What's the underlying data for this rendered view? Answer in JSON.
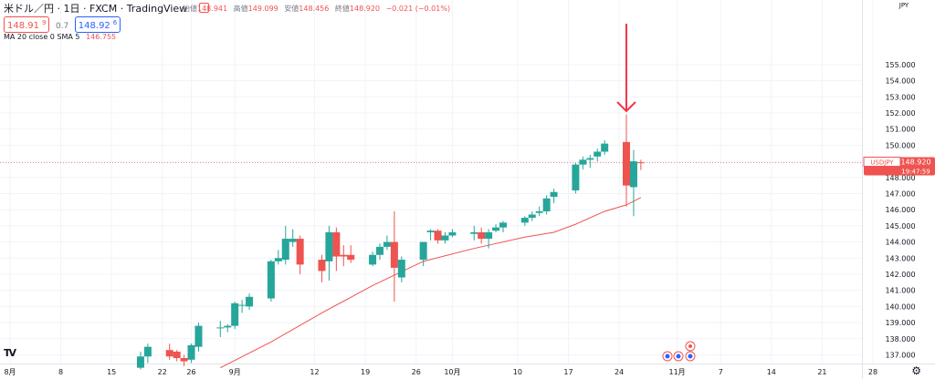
{
  "header": {
    "symbol_line": "米ドル／円 · 1日 · FXCM · TradingView",
    "sell_price": "148.91",
    "sell_price_sup": "9",
    "spread": "0.7",
    "buy_price": "148.92",
    "buy_price_sup": "6",
    "ohlc": {
      "open_label": "始値",
      "open": "148.941",
      "high_label": "高値",
      "high": "149.099",
      "low_label": "安値",
      "low": "148.456",
      "close_label": "終値",
      "close": "148.920",
      "change": "−0.021 (−0.01%)"
    },
    "indicator": {
      "label": "MA 20 close 0 SMA 5",
      "value": "146.755"
    }
  },
  "price_label": {
    "symbol": "USDJPY",
    "price": "148.920",
    "countdown": "19:47:59"
  },
  "colors": {
    "up": "#26a69a",
    "down": "#ef5350",
    "ma": "#ef5350",
    "grid": "#f0f3fa",
    "axis_text": "#131722"
  },
  "chart_data": {
    "type": "candlestick",
    "title": "米ドル／円 · 1日 · FXCM",
    "currency": "JPY",
    "x_ticks": [
      {
        "day": 0,
        "label": "8月"
      },
      {
        "day": 7,
        "label": "8"
      },
      {
        "day": 14,
        "label": "15"
      },
      {
        "day": 21,
        "label": "22"
      },
      {
        "day": 25,
        "label": "26"
      },
      {
        "day": 31,
        "label": "9月"
      },
      {
        "day": 42,
        "label": "12"
      },
      {
        "day": 49,
        "label": "19"
      },
      {
        "day": 56,
        "label": "26"
      },
      {
        "day": 61,
        "label": "10月"
      },
      {
        "day": 70,
        "label": "10"
      },
      {
        "day": 77,
        "label": "17"
      },
      {
        "day": 84,
        "label": "24"
      },
      {
        "day": 92,
        "label": "11月"
      },
      {
        "day": 98,
        "label": "7"
      },
      {
        "day": 105,
        "label": "14"
      },
      {
        "day": 112,
        "label": "21"
      },
      {
        "day": 119,
        "label": "28"
      }
    ],
    "y_ticks": [
      137,
      138,
      139,
      140,
      141,
      142,
      143,
      144,
      145,
      146,
      147,
      148,
      149,
      150,
      151,
      152,
      153,
      154,
      155
    ],
    "ylim": [
      136.3,
      155.2
    ],
    "xlim": [
      0,
      121
    ],
    "candles": [
      {
        "day": 18,
        "o": 136.2,
        "h": 137.2,
        "l": 136.1,
        "c": 136.9
      },
      {
        "day": 19,
        "o": 136.9,
        "h": 137.7,
        "l": 136.5,
        "c": 137.5
      },
      {
        "day": 22,
        "o": 137.3,
        "h": 137.7,
        "l": 136.7,
        "c": 136.9
      },
      {
        "day": 23,
        "o": 137.2,
        "h": 137.3,
        "l": 136.6,
        "c": 136.8
      },
      {
        "day": 24,
        "o": 136.8,
        "h": 137.0,
        "l": 136.3,
        "c": 136.6
      },
      {
        "day": 25,
        "o": 136.7,
        "h": 137.7,
        "l": 136.5,
        "c": 137.6
      },
      {
        "day": 26,
        "o": 137.5,
        "h": 139.0,
        "l": 137.2,
        "c": 138.8
      },
      {
        "day": 29,
        "o": 138.7,
        "h": 139.1,
        "l": 138.1,
        "c": 138.7
      },
      {
        "day": 30,
        "o": 138.7,
        "h": 138.9,
        "l": 138.4,
        "c": 138.8
      },
      {
        "day": 31,
        "o": 138.8,
        "h": 140.3,
        "l": 138.6,
        "c": 140.2
      },
      {
        "day": 32,
        "o": 140.1,
        "h": 140.4,
        "l": 139.6,
        "c": 140.1
      },
      {
        "day": 33,
        "o": 140.0,
        "h": 140.8,
        "l": 139.8,
        "c": 140.6
      },
      {
        "day": 36,
        "o": 140.5,
        "h": 142.9,
        "l": 140.3,
        "c": 142.8
      },
      {
        "day": 37,
        "o": 142.8,
        "h": 143.5,
        "l": 142.6,
        "c": 143.0
      },
      {
        "day": 38,
        "o": 142.9,
        "h": 145.0,
        "l": 142.6,
        "c": 144.2
      },
      {
        "day": 39,
        "o": 144.0,
        "h": 144.8,
        "l": 143.7,
        "c": 144.2
      },
      {
        "day": 40,
        "o": 144.2,
        "h": 144.4,
        "l": 142.0,
        "c": 142.6
      },
      {
        "day": 43,
        "o": 142.9,
        "h": 143.2,
        "l": 141.5,
        "c": 142.2
      },
      {
        "day": 44,
        "o": 142.8,
        "h": 145.0,
        "l": 141.6,
        "c": 144.6
      },
      {
        "day": 45,
        "o": 144.6,
        "h": 144.9,
        "l": 142.2,
        "c": 143.1
      },
      {
        "day": 46,
        "o": 143.2,
        "h": 143.8,
        "l": 142.5,
        "c": 143.1
      },
      {
        "day": 47,
        "o": 143.2,
        "h": 143.8,
        "l": 142.7,
        "c": 142.9
      },
      {
        "day": 50,
        "o": 142.6,
        "h": 143.4,
        "l": 142.5,
        "c": 143.2
      },
      {
        "day": 51,
        "o": 143.2,
        "h": 143.9,
        "l": 142.9,
        "c": 143.7
      },
      {
        "day": 52,
        "o": 143.7,
        "h": 144.4,
        "l": 143.5,
        "c": 144.0
      },
      {
        "day": 53,
        "o": 144.0,
        "h": 145.9,
        "l": 140.3,
        "c": 142.4
      },
      {
        "day": 54,
        "o": 141.8,
        "h": 143.1,
        "l": 141.5,
        "c": 142.9
      },
      {
        "day": 57,
        "o": 142.9,
        "h": 144.0,
        "l": 142.5,
        "c": 144.0
      },
      {
        "day": 58,
        "o": 144.6,
        "h": 144.8,
        "l": 144.1,
        "c": 144.7
      },
      {
        "day": 59,
        "o": 144.7,
        "h": 144.8,
        "l": 143.9,
        "c": 144.1
      },
      {
        "day": 60,
        "o": 144.1,
        "h": 144.6,
        "l": 143.9,
        "c": 144.4
      },
      {
        "day": 61,
        "o": 144.4,
        "h": 144.8,
        "l": 144.3,
        "c": 144.6
      },
      {
        "day": 64,
        "o": 144.5,
        "h": 145.0,
        "l": 144.1,
        "c": 144.6
      },
      {
        "day": 65,
        "o": 144.6,
        "h": 144.9,
        "l": 143.9,
        "c": 144.2
      },
      {
        "day": 66,
        "o": 144.2,
        "h": 144.8,
        "l": 143.6,
        "c": 144.6
      },
      {
        "day": 67,
        "o": 144.7,
        "h": 145.1,
        "l": 144.6,
        "c": 144.9
      },
      {
        "day": 68,
        "o": 144.9,
        "h": 145.3,
        "l": 144.6,
        "c": 145.2
      },
      {
        "day": 71,
        "o": 145.2,
        "h": 145.6,
        "l": 145.0,
        "c": 145.5
      },
      {
        "day": 72,
        "o": 145.5,
        "h": 145.9,
        "l": 145.3,
        "c": 145.7
      },
      {
        "day": 73,
        "o": 145.8,
        "h": 146.2,
        "l": 145.6,
        "c": 145.9
      },
      {
        "day": 74,
        "o": 145.9,
        "h": 146.9,
        "l": 145.7,
        "c": 146.7
      },
      {
        "day": 75,
        "o": 146.8,
        "h": 147.3,
        "l": 146.4,
        "c": 147.1
      },
      {
        "day": 78,
        "o": 147.2,
        "h": 148.9,
        "l": 147.0,
        "c": 148.8
      },
      {
        "day": 79,
        "o": 148.8,
        "h": 149.3,
        "l": 148.5,
        "c": 149.1
      },
      {
        "day": 80,
        "o": 149.1,
        "h": 149.4,
        "l": 148.6,
        "c": 149.2
      },
      {
        "day": 81,
        "o": 149.3,
        "h": 149.8,
        "l": 149.0,
        "c": 149.6
      },
      {
        "day": 82,
        "o": 149.6,
        "h": 150.3,
        "l": 149.4,
        "c": 150.1
      },
      {
        "day": 85,
        "o": 150.2,
        "h": 151.9,
        "l": 146.2,
        "c": 147.5
      },
      {
        "day": 86,
        "o": 147.4,
        "h": 149.7,
        "l": 145.6,
        "c": 149.0
      },
      {
        "day": 87,
        "o": 148.94,
        "h": 149.1,
        "l": 148.46,
        "c": 148.92
      }
    ],
    "ma20": [
      {
        "day": 29,
        "v": 136.2
      },
      {
        "day": 36,
        "v": 137.8
      },
      {
        "day": 43,
        "v": 139.6
      },
      {
        "day": 50,
        "v": 141.3
      },
      {
        "day": 57,
        "v": 142.8
      },
      {
        "day": 64,
        "v": 143.6
      },
      {
        "day": 71,
        "v": 144.3
      },
      {
        "day": 75,
        "v": 144.6
      },
      {
        "day": 78,
        "v": 145.1
      },
      {
        "day": 82,
        "v": 145.9
      },
      {
        "day": 85,
        "v": 146.3
      },
      {
        "day": 87,
        "v": 146.755
      }
    ],
    "current_price": 148.92,
    "annotation": {
      "type": "arrow-down",
      "day": 85,
      "price": 152.0
    }
  }
}
